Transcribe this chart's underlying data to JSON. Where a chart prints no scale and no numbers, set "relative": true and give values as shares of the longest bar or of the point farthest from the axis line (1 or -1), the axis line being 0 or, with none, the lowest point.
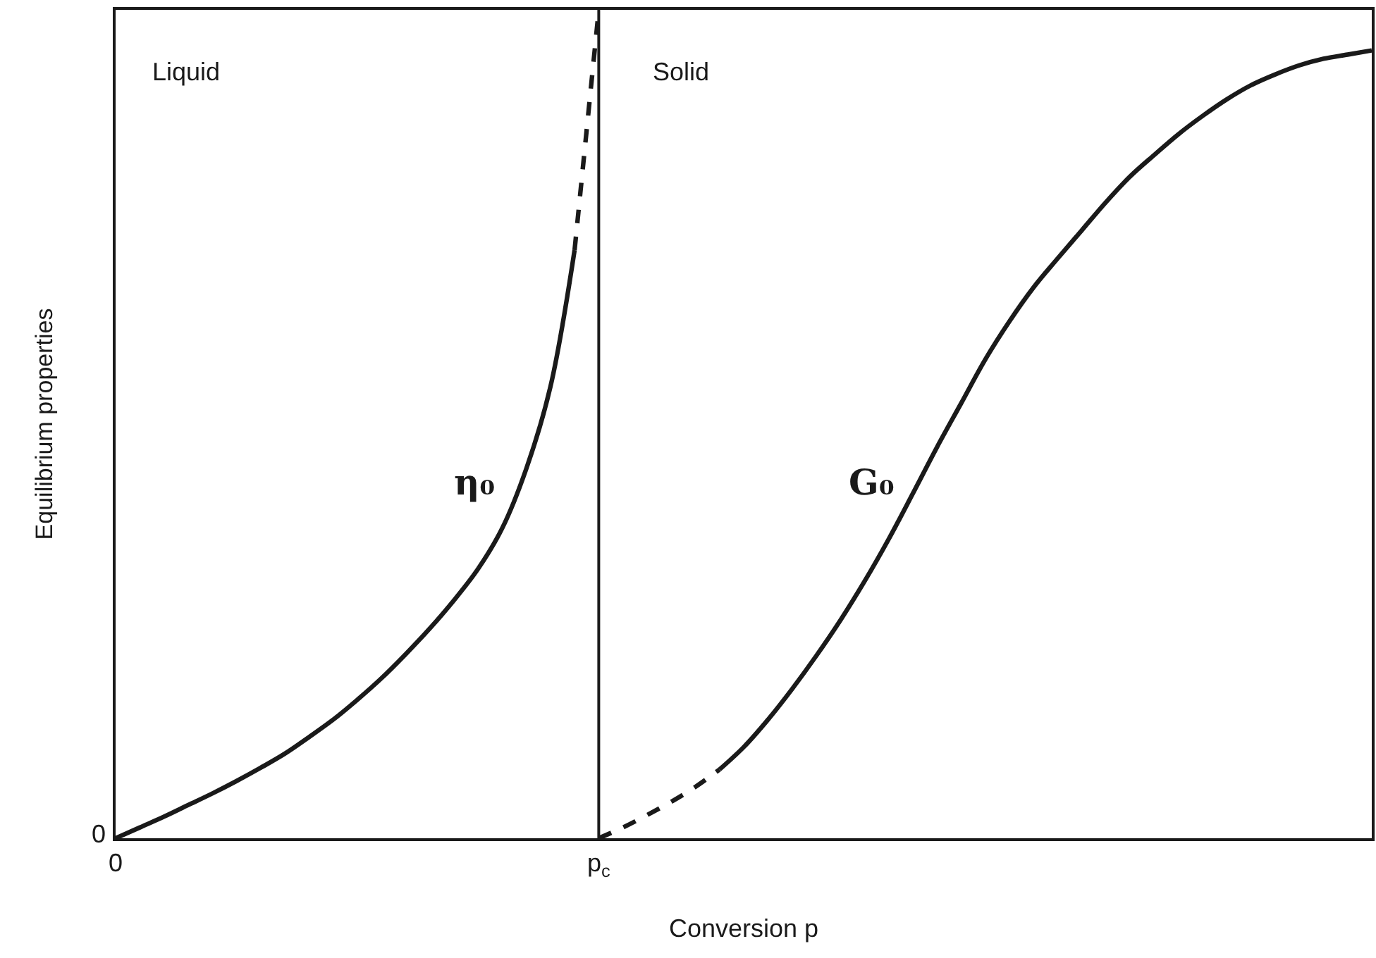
{
  "chart_data": {
    "type": "line",
    "relative": true,
    "xlabel": "Conversion p",
    "ylabel": "Equilibrium properties",
    "categories": [
      "0",
      null,
      null,
      null,
      null,
      null,
      null,
      null,
      null,
      null,
      null,
      null,
      null,
      null,
      null,
      null,
      null,
      null,
      null,
      null,
      "p$_{c}$",
      null,
      null,
      null,
      null,
      null,
      null,
      null,
      null,
      null,
      null,
      null,
      null,
      null,
      null,
      null,
      null,
      null,
      null,
      null,
      null,
      null,
      null,
      null,
      null,
      null,
      null,
      null,
      null,
      null,
      null,
      null,
      null
    ],
    "series": [
      {
        "name": "η₀",
        "color": "#1a1a1a",
        "line_style": "solid",
        "values": [
          0,
          0.013,
          0.026,
          0.04,
          0.054,
          0.069,
          0.085,
          0.102,
          0.122,
          0.143,
          0.167,
          0.193,
          0.222,
          0.253,
          0.287,
          0.325,
          0.374,
          0.446,
          0.545,
          0.71,
          null,
          null,
          null,
          null,
          null,
          null,
          null,
          null,
          null,
          null,
          null,
          null,
          null,
          null,
          null,
          null,
          null,
          null,
          null,
          null,
          null,
          null,
          null,
          null,
          null,
          null,
          null,
          null,
          null,
          null,
          null,
          null,
          null
        ]
      },
      {
        "color": "#1a1a1a",
        "line_style": "dashed",
        "values": [
          null,
          null,
          null,
          null,
          null,
          null,
          null,
          null,
          null,
          null,
          null,
          null,
          null,
          null,
          null,
          null,
          null,
          null,
          null,
          0.71,
          1,
          null,
          null,
          null,
          null,
          null,
          null,
          null,
          null,
          null,
          null,
          null,
          null,
          null,
          null,
          null,
          null,
          null,
          null,
          null,
          null,
          null,
          null,
          null,
          null,
          null,
          null,
          null,
          null,
          null,
          null,
          null,
          null
        ]
      },
      {
        "color": "#1a1a1a",
        "line_style": "dashed",
        "values": [
          null,
          null,
          null,
          null,
          null,
          null,
          null,
          null,
          null,
          null,
          null,
          null,
          null,
          null,
          null,
          null,
          null,
          null,
          null,
          null,
          0,
          0.013,
          0.028,
          0.044,
          0.062,
          0.083,
          null,
          null,
          null,
          null,
          null,
          null,
          null,
          null,
          null,
          null,
          null,
          null,
          null,
          null,
          null,
          null,
          null,
          null,
          null,
          null,
          null,
          null,
          null,
          null,
          null,
          null,
          null
        ]
      },
      {
        "name": "G₀",
        "color": "#1a1a1a",
        "line_style": "solid",
        "values": [
          null,
          null,
          null,
          null,
          null,
          null,
          null,
          null,
          null,
          null,
          null,
          null,
          null,
          null,
          null,
          null,
          null,
          null,
          null,
          null,
          null,
          null,
          null,
          null,
          null,
          0.083,
          0.11,
          0.143,
          0.18,
          0.22,
          0.263,
          0.31,
          0.361,
          0.416,
          0.472,
          0.525,
          0.578,
          0.624,
          0.665,
          0.7,
          0.734,
          0.768,
          0.799,
          0.825,
          0.85,
          0.872,
          0.892,
          0.909,
          0.922,
          0.933,
          0.941,
          0.946,
          0.951
        ]
      }
    ],
    "ref_lines": [
      {
        "axis": "x",
        "value": "p$_{c}$",
        "color": "#1a1a1a"
      }
    ],
    "annotations": [
      "Liquid",
      "Solid",
      "0"
    ],
    "legend": false
  }
}
